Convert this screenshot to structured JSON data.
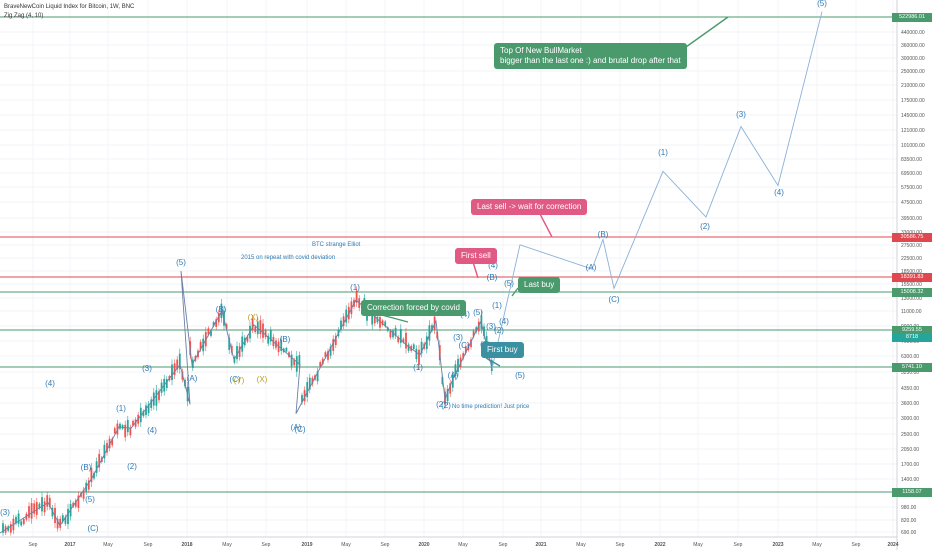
{
  "header": {
    "title": "BraveNewCoin Liquid Index for Bitcoin, 1W, BNC",
    "indicator": "Zig Zag (4, 10)"
  },
  "colors": {
    "green": "#4a9a6e",
    "red": "#e0484f",
    "blue": "#2f7bb5",
    "teal": "#3a8fa0",
    "pink": "#e05a83",
    "candle_up": "#26a69a",
    "candle_down": "#ef5350",
    "projection": "#8cb0d8"
  },
  "callouts": {
    "top": "Top Of New BullMarket\nbigger than the last one :) and brutal drop after that",
    "last_sell": "Last sell  -> wait for correction",
    "first_sell": "First sell",
    "last_buy": "Last buy",
    "correction": "Correction forced by covid",
    "first_buy": "First buy"
  },
  "notes": {
    "strange": "BTC strange Elliot",
    "repeat": "2015 on repeat with covid deviation",
    "no_time": "No time prediction! Just price"
  },
  "chart_data": {
    "type": "line",
    "price_scale": "log",
    "y_ticks": [
      "440000.00",
      "360000.00",
      "300000.00",
      "250000.00",
      "210000.00",
      "175000.00",
      "145000.00",
      "121000.00",
      "101000.00",
      "83500.00",
      "69500.00",
      "57500.00",
      "47500.00",
      "39500.00",
      "33000.00",
      "27500.00",
      "22500.00",
      "18500.00",
      "15500.00",
      "13000.00",
      "11000.00",
      "9000.00",
      "7600.00",
      "6300.00",
      "5250.00",
      "4350.00",
      "3600.00",
      "3000.00",
      "2500.00",
      "2050.00",
      "1700.00",
      "1400.00",
      "1180.00",
      "980.00",
      "820.00",
      "690.00"
    ],
    "x_ticks": [
      "Sep",
      "2017",
      "May",
      "Sep",
      "2018",
      "May",
      "Sep",
      "2019",
      "May",
      "Sep",
      "2020",
      "May",
      "Sep",
      "2021",
      "May",
      "Sep",
      "2022",
      "May",
      "Sep",
      "2023",
      "May",
      "Sep",
      "2024"
    ],
    "price_lines": [
      {
        "value": "522986.01",
        "color": "green"
      },
      {
        "value": "30586.75",
        "color": "red"
      },
      {
        "value": "18391.83",
        "color": "red"
      },
      {
        "value": "15008.32",
        "color": "green"
      },
      {
        "value": "9259.55",
        "color": "green"
      },
      {
        "value": "5741.10",
        "color": "green"
      },
      {
        "value": "1158.07",
        "color": "green"
      }
    ],
    "current_price": "8718",
    "wave_labels": [
      "(3)",
      "(4)",
      "(5)",
      "(B)",
      "(C)",
      "(1)",
      "(2)",
      "(3)",
      "(4)",
      "(5)",
      "(A)",
      "(B)",
      "(C)",
      "(X)",
      "(Y)",
      "(X)",
      "(A)",
      "(B)",
      "(C)",
      "(1)",
      "(2)",
      "(1)",
      "(2)",
      "(A)",
      "(B)",
      "(C)",
      "(3)",
      "(4)",
      "(5)",
      "(3)",
      "(4)",
      "(5)",
      "(1)",
      "(2)",
      "(3)",
      "(4)",
      "(5)",
      "(A)",
      "(B)",
      "(C)",
      "(1)",
      "(2)",
      "(3)",
      "(4)",
      "(5)"
    ],
    "zigzag_prices": [
      690,
      1020,
      760,
      1400,
      2700,
      2650,
      6000,
      3600,
      20000,
      6000,
      12000,
      6400,
      10000,
      6000,
      3200,
      13800,
      7600,
      6800,
      10500,
      3850,
      5000,
      10500,
      5700
    ],
    "projection_prices": [
      6000,
      28000,
      20500,
      30000,
      16000,
      72000,
      40000,
      128000,
      60000,
      560000
    ]
  }
}
